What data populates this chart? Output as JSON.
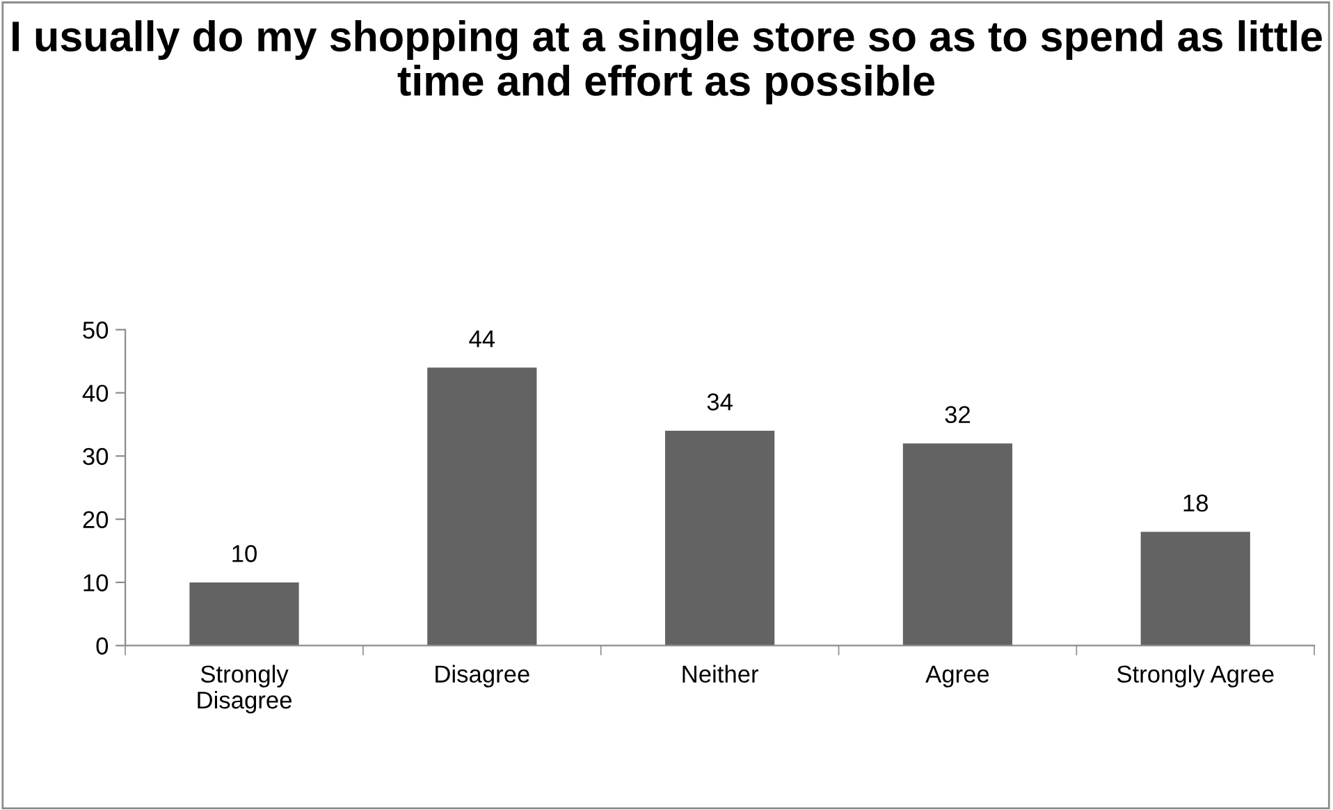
{
  "chart_data": {
    "type": "bar",
    "title": "I usually do my shopping at a single store so as to spend as little time and effort as possible",
    "categories": [
      "Strongly\nDisagree",
      "Disagree",
      "Neither",
      "Agree",
      "Strongly Agree"
    ],
    "values": [
      10,
      44,
      34,
      32,
      18
    ],
    "color": "#636363",
    "ylim": [
      0,
      50
    ],
    "yticks": [
      0,
      10,
      20,
      30,
      40,
      50
    ],
    "grid": false,
    "data_labels": true
  }
}
